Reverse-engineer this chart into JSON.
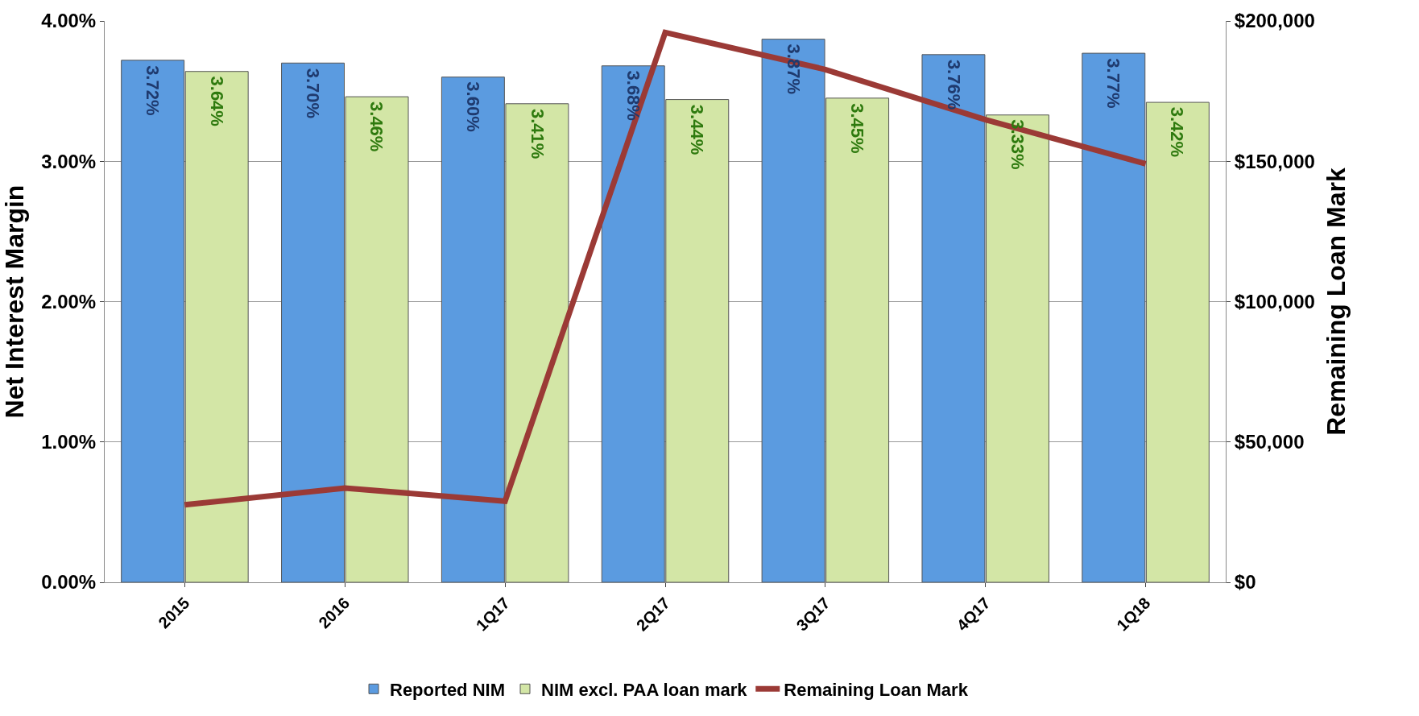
{
  "chart_data": {
    "type": "bar",
    "categories": [
      "2015",
      "2016",
      "1Q17",
      "2Q17",
      "3Q17",
      "4Q17",
      "1Q18"
    ],
    "ylabel": "Net Interest Margin",
    "y2label": "Remaining Loan Mark",
    "ylim": [
      0,
      4
    ],
    "yticks": [
      {
        "value": 0,
        "label": "0.00%"
      },
      {
        "value": 1,
        "label": "1.00%"
      },
      {
        "value": 2,
        "label": "2.00%"
      },
      {
        "value": 3,
        "label": "3.00%"
      },
      {
        "value": 4,
        "label": "4.00%"
      }
    ],
    "y2lim": [
      0,
      200000
    ],
    "y2ticks": [
      {
        "value": 0,
        "label": "$0"
      },
      {
        "value": 50000,
        "label": "$50,000"
      },
      {
        "value": 100000,
        "label": "$100,000"
      },
      {
        "value": 150000,
        "label": "$150,000"
      },
      {
        "value": 200000,
        "label": "$200,000"
      }
    ],
    "grid": "y",
    "legend": "bottom",
    "series": [
      {
        "name": "Reported NIM",
        "color": "#5b9be0",
        "values": [
          3.72,
          3.7,
          3.6,
          3.68,
          3.87,
          3.76,
          3.77
        ],
        "value_labels": [
          "3.72%",
          "3.70%",
          "3.60%",
          "3.68%",
          "3.87%",
          "3.76%",
          "3.77%"
        ]
      },
      {
        "name": "NIM excl. PAA loan mark",
        "color": "#d3e6a6",
        "values": [
          3.64,
          3.46,
          3.41,
          3.44,
          3.45,
          3.33,
          3.42
        ],
        "value_labels": [
          "3.64%",
          "3.46%",
          "3.41%",
          "3.44%",
          "3.45%",
          "3.33%",
          "3.42%"
        ]
      },
      {
        "name": "Remaining Loan Mark",
        "type": "line",
        "axis": "y2",
        "color": "#9b3a36",
        "values": [
          27600,
          33600,
          28900,
          195900,
          182700,
          164800,
          149100
        ]
      }
    ]
  }
}
